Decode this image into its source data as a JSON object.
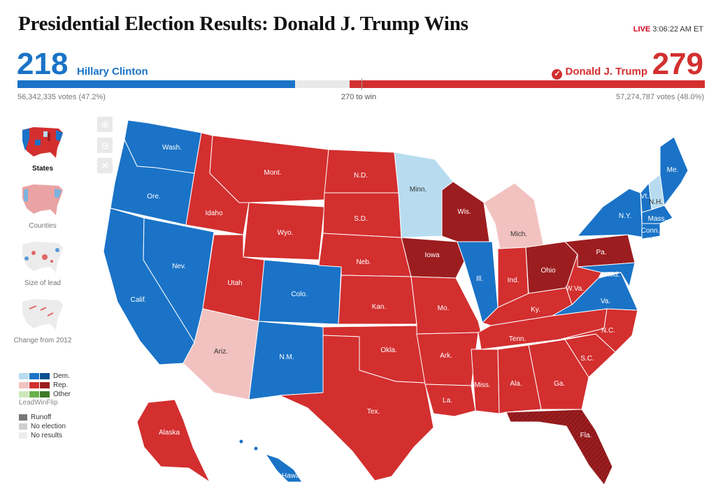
{
  "header": {
    "title": "Presidential Election Results: Donald J. Trump Wins",
    "live_tag": "LIVE",
    "live_time": "3:06:22 AM ET"
  },
  "dem": {
    "electoral": "218",
    "name": "Hillary Clinton",
    "votes": "56,342,335 votes (47.2%)"
  },
  "rep": {
    "electoral": "279",
    "name": "Donald J. Trump",
    "votes": "57,274,787 votes (48.0%)"
  },
  "bar": {
    "to_win": "270 to win",
    "dem_share": 0.404,
    "rep_share": 0.517
  },
  "colors": {
    "dem_dark": "#1a73c7",
    "dem_light": "#b7dcf0",
    "rep_dark": "#d32f2f",
    "rep_light": "#f2c2c0",
    "rep_flip": "#9c1d1f",
    "other": "#6ab04c"
  },
  "sidebar": {
    "views": [
      {
        "label": "States"
      },
      {
        "label": "Counties"
      },
      {
        "label": "Size of lead"
      },
      {
        "label": "Change from 2012"
      }
    ]
  },
  "zoom": {
    "in_icon": "zoom-in-icon",
    "out_icon": "zoom-out-icon",
    "reset_icon": "close-icon",
    "in_glyph": "⊕",
    "out_glyph": "⊖",
    "reset_glyph": "✕"
  },
  "legend": {
    "dem": "Dem.",
    "rep": "Rep.",
    "other": "Other",
    "lead_win_flip": "LeadWinFlip",
    "runoff": "Runoff",
    "no_election": "No election",
    "no_results": "No results"
  },
  "states": {
    "wash": "Wash.",
    "ore": "Ore.",
    "calif": "Calif.",
    "nev": "Nev.",
    "idaho": "Idaho",
    "mont": "Mont.",
    "wyo": "Wyo.",
    "utah": "Utah",
    "ariz": "Ariz.",
    "colo": "Colo.",
    "nm": "N.M.",
    "nd": "N.D.",
    "sd": "S.D.",
    "neb": "Neb.",
    "kan": "Kan.",
    "okla": "Okla.",
    "tex": "Tex.",
    "minn": "Minn.",
    "iowa": "Iowa",
    "mo": "Mo.",
    "ark": "Ark.",
    "la": "La.",
    "wis": "Wis.",
    "ill": "Ill.",
    "mich": "Mich.",
    "ind": "Ind.",
    "ohio": "Ohio",
    "ky": "Ky.",
    "tenn": "Tenn.",
    "miss": "Miss.",
    "ala": "Ala.",
    "ga": "Ga.",
    "fla": "Fla.",
    "sc": "S.C.",
    "nc": "N.C.",
    "va": "Va.",
    "wva": "W.Va.",
    "pa": "Pa.",
    "ny": "N.Y.",
    "vt": "Vt.",
    "nh": "N.H.",
    "me": "Me.",
    "mass": "Mass.",
    "conn": "Conn.",
    "md": "Md.",
    "alaska": "Alaska",
    "hawaii": "Hawaii"
  }
}
